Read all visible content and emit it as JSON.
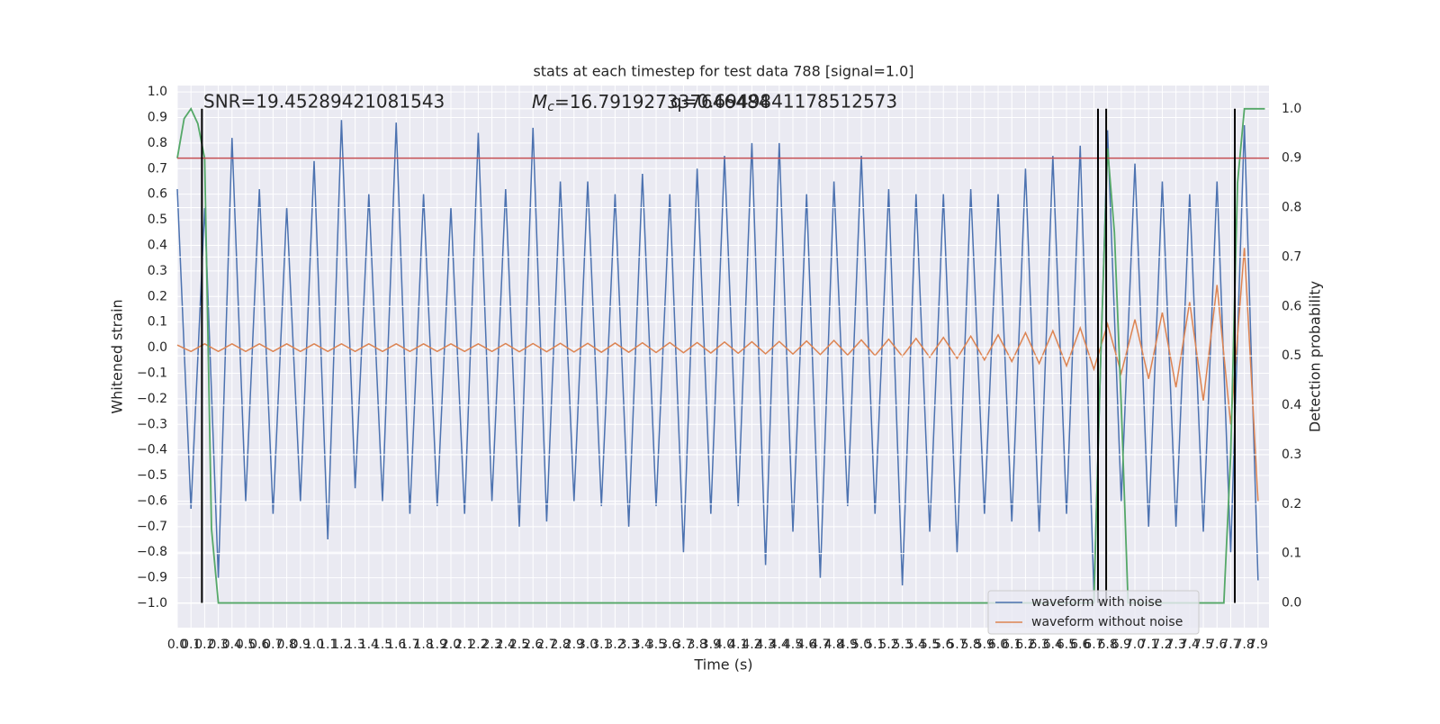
{
  "chart_data": {
    "type": "line",
    "title": "stats at each timestep for test data 788 [signal=1.0]",
    "x_label": "Time (s)",
    "y_label": "Whitened strain",
    "y2_label": "Detection probability",
    "annotations": {
      "snr": "SNR=19.45289421081543",
      "mc_symbol": "M",
      "mc_subscript": "c",
      "mc_text": "=16.791927337646484",
      "q_text": "q=0.6949841178512573"
    },
    "x": [
      0.0,
      0.1,
      0.2,
      0.3,
      0.4,
      0.5,
      0.6,
      0.7,
      0.8,
      0.9,
      1.0,
      1.1,
      1.2,
      1.3,
      1.4,
      1.5,
      1.6,
      1.7,
      1.8,
      1.9,
      2.0,
      2.1,
      2.2,
      2.3,
      2.4,
      2.5,
      2.6,
      2.7,
      2.8,
      2.9,
      3.0,
      3.1,
      3.2,
      3.3,
      3.4,
      3.5,
      3.6,
      3.7,
      3.8,
      3.9,
      4.0,
      4.1,
      4.2,
      4.3,
      4.4,
      4.5,
      4.6,
      4.7,
      4.8,
      4.9,
      5.0,
      5.1,
      5.2,
      5.3,
      5.4,
      5.5,
      5.6,
      5.7,
      5.8,
      5.9,
      6.0,
      6.1,
      6.2,
      6.3,
      6.4,
      6.5,
      6.6,
      6.7,
      6.8,
      6.9,
      7.0,
      7.1,
      7.2,
      7.3,
      7.4,
      7.5,
      7.6,
      7.7,
      7.8,
      7.9
    ],
    "series": [
      {
        "name": "waveform with noise",
        "color": "#4c72b0",
        "values": [
          0.62,
          -0.63,
          0.55,
          -0.9,
          0.82,
          -0.6,
          0.62,
          -0.65,
          0.55,
          -0.6,
          0.73,
          -0.75,
          0.89,
          -0.55,
          0.6,
          -0.6,
          0.88,
          -0.65,
          0.6,
          -0.62,
          0.55,
          -0.65,
          0.84,
          -0.6,
          0.62,
          -0.7,
          0.86,
          -0.68,
          0.65,
          -0.6,
          0.65,
          -0.62,
          0.6,
          -0.7,
          0.68,
          -0.62,
          0.6,
          -0.8,
          0.7,
          -0.65,
          0.75,
          -0.62,
          0.8,
          -0.85,
          0.8,
          -0.72,
          0.6,
          -0.9,
          0.65,
          -0.62,
          0.75,
          -0.65,
          0.62,
          -0.93,
          0.6,
          -0.72,
          0.6,
          -0.8,
          0.62,
          -0.65,
          0.6,
          -0.68,
          0.7,
          -0.72,
          0.75,
          -0.65,
          0.79,
          -0.96,
          0.85,
          -0.6,
          0.72,
          -0.7,
          0.65,
          -0.7,
          0.6,
          -0.72,
          0.65,
          -0.8,
          0.87,
          -0.91
        ]
      },
      {
        "name": "waveform without noise",
        "color": "#dd8452",
        "values": [
          0.01,
          -0.015,
          0.015,
          -0.015,
          0.015,
          -0.015,
          0.015,
          -0.015,
          0.015,
          -0.015,
          0.015,
          -0.015,
          0.015,
          -0.015,
          0.015,
          -0.015,
          0.015,
          -0.015,
          0.015,
          -0.015,
          0.015,
          -0.015,
          0.015,
          -0.015,
          0.016,
          -0.016,
          0.016,
          -0.016,
          0.017,
          -0.017,
          0.017,
          -0.018,
          0.018,
          -0.018,
          0.019,
          -0.019,
          0.02,
          -0.02,
          0.02,
          -0.021,
          0.022,
          -0.022,
          0.023,
          -0.024,
          0.024,
          -0.025,
          0.026,
          -0.027,
          0.028,
          -0.029,
          0.03,
          -0.031,
          0.033,
          -0.034,
          0.036,
          -0.038,
          0.04,
          -0.042,
          0.045,
          -0.048,
          0.05,
          -0.054,
          0.058,
          -0.062,
          0.066,
          -0.071,
          0.077,
          -0.084,
          0.092,
          -0.1,
          0.11,
          -0.122,
          0.137,
          -0.155,
          0.178,
          -0.207,
          0.245,
          -0.3,
          0.39,
          -0.6
        ]
      }
    ],
    "probability": {
      "color": "#55a868",
      "x": [
        0.0,
        0.05,
        0.1,
        0.15,
        0.2,
        0.25,
        0.3,
        0.35,
        6.7,
        6.75,
        6.8,
        6.85,
        6.9,
        6.95,
        7.0,
        7.6,
        7.65,
        7.7,
        7.75,
        7.8,
        7.85,
        7.9,
        7.95
      ],
      "values": [
        0.9,
        0.98,
        1.0,
        0.97,
        0.9,
        0.15,
        0.0,
        0.0,
        0.0,
        0.5,
        0.92,
        0.75,
        0.4,
        0.0,
        0.0,
        0.0,
        0.0,
        0.3,
        0.85,
        1.0,
        1.0,
        1.0,
        1.0
      ]
    },
    "threshold": {
      "value": 0.9,
      "color": "#c44e52"
    },
    "markers": {
      "x": [
        0.18,
        6.73,
        6.79,
        7.73
      ],
      "color": "#000000"
    },
    "xlim": [
      0,
      7.98
    ],
    "ylim": [
      -1.095,
      1.025
    ],
    "y2lim": [
      -0.05,
      1.047
    ],
    "xticks": [
      {
        "value": 0.0,
        "label": "0.0"
      },
      0.1,
      0.2,
      0.3,
      0.4,
      0.5,
      0.6,
      0.7,
      0.8,
      0.9,
      {
        "value": 1.0,
        "label": "1.0"
      },
      1.1,
      1.2,
      1.3,
      1.4,
      1.5,
      1.6,
      1.7,
      1.8,
      1.9,
      {
        "value": 2.0,
        "label": "2.0"
      },
      2.1,
      2.2,
      2.3,
      2.4,
      2.5,
      2.6,
      2.7,
      2.8,
      2.9,
      {
        "value": 3.0,
        "label": "3.0"
      },
      3.1,
      3.2,
      3.3,
      3.4,
      3.5,
      3.6,
      3.7,
      3.8,
      3.9,
      {
        "value": 4.0,
        "label": "4.0"
      },
      4.1,
      4.2,
      4.3,
      4.4,
      4.5,
      4.6,
      4.7,
      4.8,
      4.9,
      {
        "value": 5.0,
        "label": "5.0"
      },
      5.1,
      5.2,
      5.3,
      5.4,
      5.5,
      5.6,
      5.7,
      5.8,
      5.9,
      {
        "value": 6.0,
        "label": "6.0"
      },
      6.1,
      6.2,
      6.3,
      6.4,
      6.5,
      6.6,
      6.7,
      6.8,
      6.9,
      {
        "value": 7.0,
        "label": "7.0"
      },
      7.1,
      7.2,
      7.3,
      7.4,
      7.5,
      7.6,
      7.7,
      7.8,
      7.9
    ],
    "yticks": [
      {
        "value": -1.0,
        "label": "−1.0"
      },
      {
        "value": -0.9,
        "label": "−0.9"
      },
      {
        "value": -0.8,
        "label": "−0.8"
      },
      {
        "value": -0.7,
        "label": "−0.7"
      },
      {
        "value": -0.6,
        "label": "−0.6"
      },
      {
        "value": -0.5,
        "label": "−0.5"
      },
      {
        "value": -0.4,
        "label": "−0.4"
      },
      {
        "value": -0.3,
        "label": "−0.3"
      },
      {
        "value": -0.2,
        "label": "−0.2"
      },
      {
        "value": -0.1,
        "label": "−0.1"
      },
      {
        "value": 0.0,
        "label": "0.0"
      },
      0.1,
      0.2,
      0.3,
      0.4,
      0.5,
      0.6,
      0.7,
      0.8,
      0.9,
      {
        "value": 1.0,
        "label": "1.0"
      }
    ],
    "y2ticks": [
      {
        "value": 0.0,
        "label": "0.0"
      },
      0.1,
      0.2,
      0.3,
      0.4,
      0.5,
      0.6,
      0.7,
      0.8,
      0.9,
      {
        "value": 1.0,
        "label": "1.0"
      }
    ],
    "grid": true,
    "legend": "lower right"
  }
}
